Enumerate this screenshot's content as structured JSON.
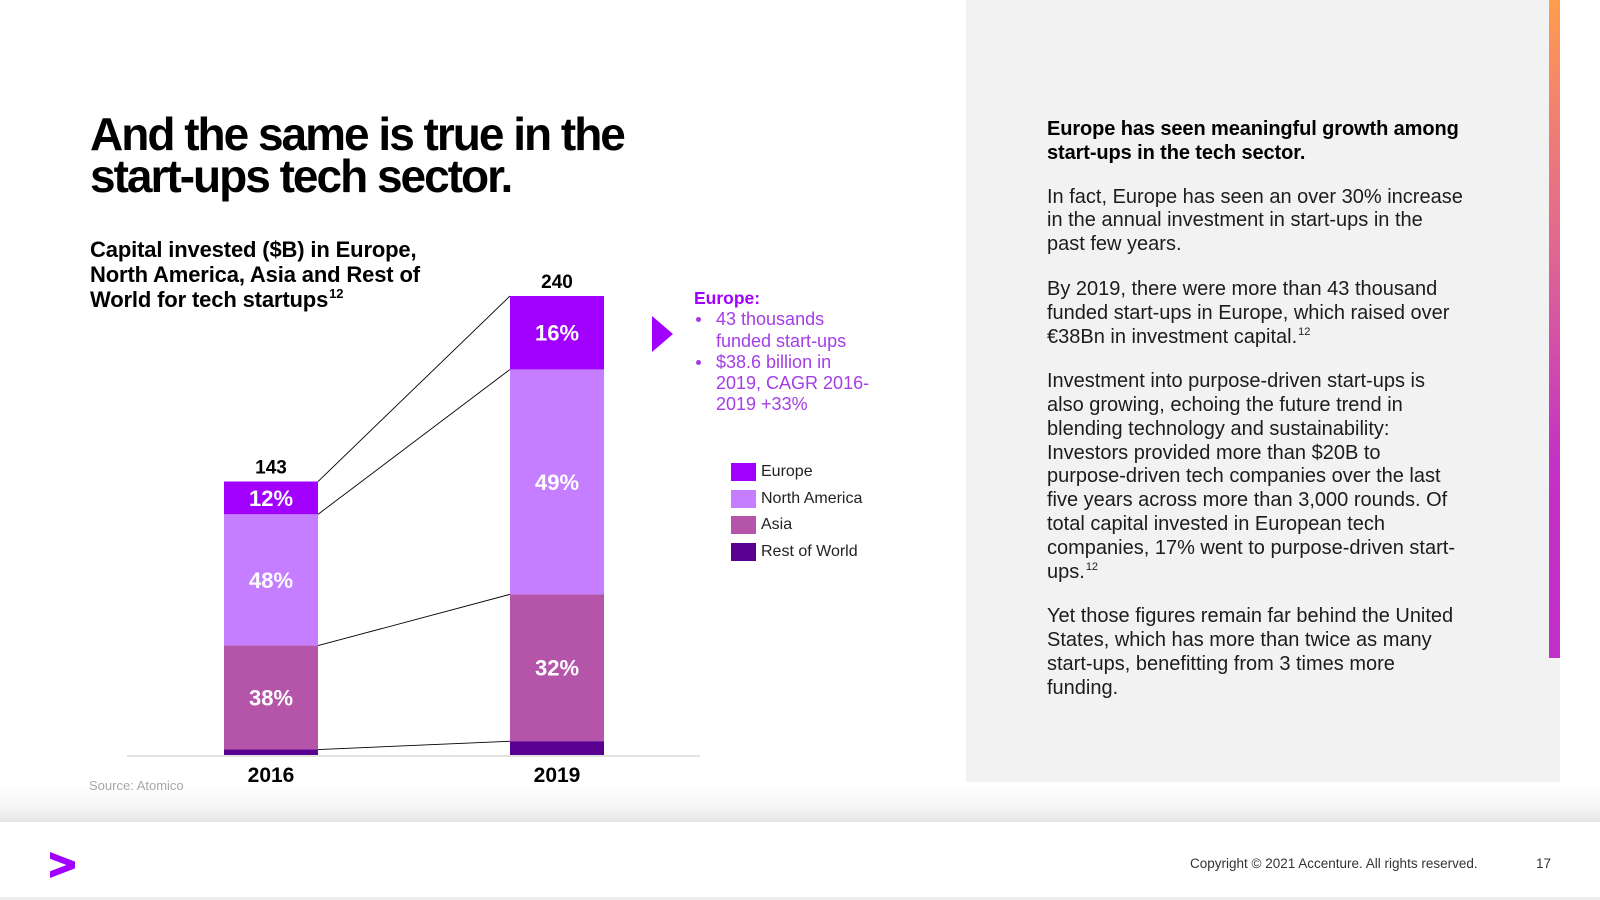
{
  "slide": {
    "title_lines": [
      "And the same is true in the",
      "start-ups tech sector."
    ],
    "source": "Source: Atomico",
    "copyright": "Copyright © 2021 Accenture. All rights reserved.",
    "page_number": "17",
    "logo_icon": "accenture-logo-icon"
  },
  "chart_data": {
    "type": "bar",
    "stacked": true,
    "title_lines": [
      "Capital invested ($B) in Europe,",
      "North America, Asia and Rest of",
      "World for tech startups"
    ],
    "title_footnote": "12",
    "unit": "$B",
    "categories": [
      "2016",
      "2019"
    ],
    "totals": [
      143,
      240
    ],
    "total_labels": [
      "143",
      "240"
    ],
    "series": [
      {
        "name": "Europe",
        "color": "#a100ff",
        "share_pct": [
          12,
          16
        ]
      },
      {
        "name": "North America",
        "color": "#c47eff",
        "share_pct": [
          48,
          49
        ]
      },
      {
        "name": "Asia",
        "color": "#b455aa",
        "share_pct": [
          38,
          32
        ]
      },
      {
        "name": "Rest of World",
        "color": "#5a0090",
        "share_pct": [
          2,
          3
        ]
      }
    ],
    "data_labels": [
      [
        "12%",
        "48%",
        "38%",
        ""
      ],
      [
        "16%",
        "49%",
        "32%",
        ""
      ]
    ],
    "xlabel": "",
    "ylabel": "",
    "ylim": [
      0,
      240
    ],
    "grid": false,
    "legend": "right",
    "connector_lines": true
  },
  "annotation": {
    "marker_icon": "triangle-right-icon",
    "heading": "Europe:",
    "bullets": [
      {
        "lines": [
          "43 thousands",
          "funded start-ups"
        ]
      },
      {
        "lines": [
          "$38.6 billion in",
          "2019, CAGR 2016-",
          "2019 +33%"
        ]
      }
    ]
  },
  "right_panel": {
    "heading_lines": [
      "Europe has seen meaningful growth among",
      "start-ups in the tech sector."
    ],
    "paragraphs": [
      {
        "lines": [
          "In fact, Europe has seen an over 30% increase",
          "in the annual investment in start-ups in the",
          "past few years."
        ]
      },
      {
        "lines": [
          "By 2019, there were more than 43 thousand",
          "funded start-ups in Europe, which raised over",
          "€38Bn in investment capital."
        ],
        "footnote": "12"
      },
      {
        "lines": [
          "Investment into purpose-driven start-ups is",
          "also growing, echoing the future trend in",
          "blending technology and sustainability:",
          "Investors provided more than $20B to",
          "purpose-driven tech companies over the last",
          "five years across more than 3,000 rounds. Of",
          "total capital invested in European tech",
          "companies, 17% went to purpose-driven start-",
          "ups."
        ],
        "footnote": "12"
      },
      {
        "lines": [
          "Yet those figures remain far behind the United",
          "States, which has more than twice as many",
          "start-ups, benefitting from 3 times more",
          "funding."
        ]
      }
    ]
  }
}
